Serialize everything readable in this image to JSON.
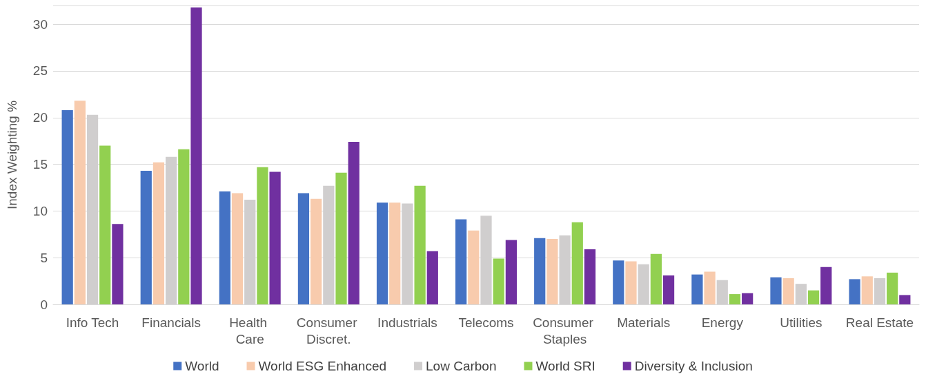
{
  "chart_data": {
    "type": "bar",
    "ylabel": "Index Weighting %",
    "categories": [
      "Info Tech",
      "Financials",
      "Health Care",
      "Consumer Discret.",
      "Industrials",
      "Telecoms",
      "Consumer Staples",
      "Materials",
      "Energy",
      "Utilities",
      "Real Estate"
    ],
    "series": [
      {
        "name": "World",
        "color": "#4472c4",
        "values": [
          20.8,
          14.3,
          12.1,
          11.9,
          10.9,
          9.1,
          7.1,
          4.7,
          3.2,
          2.9,
          2.7
        ]
      },
      {
        "name": "World ESG Enhanced",
        "color": "#f8cbad",
        "values": [
          21.8,
          15.2,
          11.9,
          11.3,
          10.9,
          7.9,
          7.0,
          4.6,
          3.5,
          2.8,
          3.0
        ]
      },
      {
        "name": "Low Carbon",
        "color": "#d0cece",
        "values": [
          20.3,
          15.8,
          11.2,
          12.7,
          10.8,
          9.5,
          7.4,
          4.3,
          2.6,
          2.2,
          2.8
        ]
      },
      {
        "name": "World SRI",
        "color": "#92d050",
        "values": [
          17.0,
          16.6,
          14.7,
          14.1,
          12.7,
          4.9,
          8.8,
          5.4,
          1.1,
          1.5,
          3.4
        ]
      },
      {
        "name": "Diversity & Inclusion",
        "color": "#7030a0",
        "values": [
          8.6,
          31.8,
          14.2,
          17.4,
          5.7,
          6.9,
          5.9,
          3.1,
          1.2,
          4.0,
          1.0
        ]
      }
    ],
    "ylim": [
      0,
      32
    ],
    "yticks": [
      0,
      5,
      10,
      15,
      20,
      25,
      30
    ],
    "grid": "y",
    "legend": "bottom"
  }
}
